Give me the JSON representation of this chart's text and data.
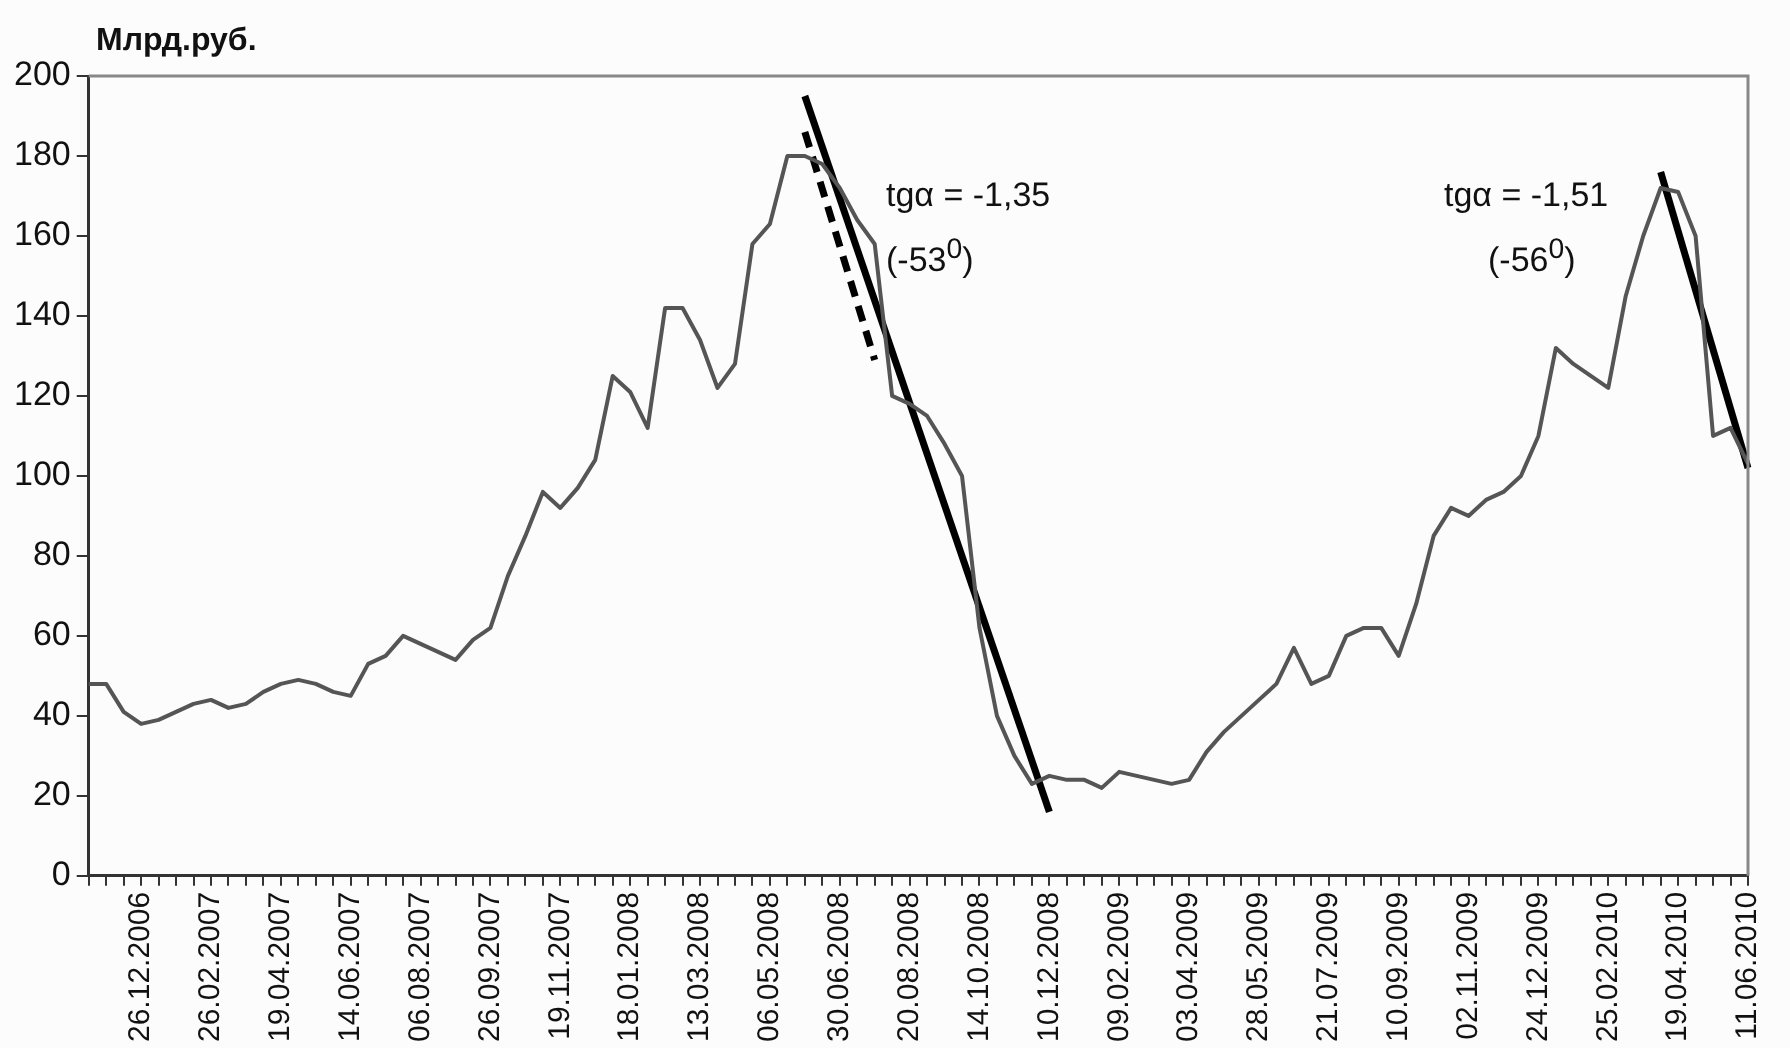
{
  "chart_data": {
    "type": "line",
    "ylabel": "Млрд.руб.",
    "annotations": [
      "tgα = -1,35",
      "(-53$^{0}$)",
      "tgα = -1,51",
      "(-56$^{0}$)"
    ],
    "categories": [
      null,
      null,
      null,
      "26.12.2006",
      null,
      null,
      null,
      "26.02.2007",
      null,
      null,
      null,
      "19.04.2007",
      null,
      null,
      null,
      "14.06.2007",
      null,
      null,
      null,
      "06.08.2007",
      null,
      null,
      null,
      "26.09.2007",
      null,
      null,
      null,
      "19.11.2007",
      null,
      null,
      null,
      "18.01.2008",
      null,
      null,
      null,
      "13.03.2008",
      null,
      null,
      null,
      "06.05.2008",
      null,
      null,
      null,
      "30.06.2008",
      null,
      null,
      null,
      "20.08.2008",
      null,
      null,
      null,
      "14.10.2008",
      null,
      null,
      null,
      "10.12.2008",
      null,
      null,
      null,
      "09.02.2009",
      null,
      null,
      null,
      "03.04.2009",
      null,
      null,
      null,
      "28.05.2009",
      null,
      null,
      null,
      "21.07.2009",
      null,
      null,
      null,
      "10.09.2009",
      null,
      null,
      null,
      "02.11.2009",
      null,
      null,
      null,
      "24.12.2009",
      null,
      null,
      null,
      "25.02.2010",
      null,
      null,
      null,
      "19.04.2010",
      null,
      null,
      null,
      "11.06.2010"
    ],
    "series": [
      {
        "color": "#555555",
        "values": [
          48,
          48,
          41,
          38,
          39,
          41,
          43,
          44,
          42,
          43,
          46,
          48,
          49,
          48,
          46,
          45,
          53,
          55,
          60,
          58,
          56,
          54,
          59,
          62,
          75,
          85,
          96,
          92,
          97,
          104,
          125,
          121,
          112,
          142,
          142,
          134,
          122,
          128,
          158,
          163,
          180,
          180,
          178,
          172,
          164,
          158,
          120,
          118,
          115,
          108,
          100,
          62,
          40,
          30,
          23,
          25,
          24,
          24,
          22,
          26,
          25,
          24,
          23,
          24,
          31,
          36,
          40,
          44,
          48,
          57,
          48,
          50,
          60,
          62,
          62,
          55,
          68,
          85,
          92,
          90,
          94,
          96,
          100,
          110,
          132,
          128,
          125,
          122,
          145,
          160,
          172,
          171,
          160,
          110,
          112,
          103
        ]
      },
      {
        "color": "#000000",
        "line_style": "solid",
        "values": [
          null,
          null,
          null,
          null,
          null,
          null,
          null,
          null,
          null,
          null,
          null,
          null,
          null,
          null,
          null,
          null,
          null,
          null,
          null,
          null,
          null,
          null,
          null,
          null,
          null,
          null,
          null,
          null,
          null,
          null,
          null,
          null,
          null,
          null,
          null,
          null,
          null,
          null,
          null,
          null,
          null,
          195,
          null,
          null,
          null,
          null,
          null,
          null,
          null,
          null,
          null,
          null,
          null,
          null,
          null,
          16,
          null,
          null,
          null,
          null,
          null,
          null,
          null,
          null,
          null,
          null,
          null,
          null,
          null,
          null,
          null,
          null,
          null,
          null,
          null,
          null,
          null,
          null,
          null,
          null,
          null,
          null,
          null,
          null,
          null,
          null,
          null,
          null,
          null,
          null,
          null,
          null,
          null,
          null,
          null,
          null
        ]
      },
      {
        "color": "#000000",
        "line_style": "dashed",
        "values": [
          null,
          null,
          null,
          null,
          null,
          null,
          null,
          null,
          null,
          null,
          null,
          null,
          null,
          null,
          null,
          null,
          null,
          null,
          null,
          null,
          null,
          null,
          null,
          null,
          null,
          null,
          null,
          null,
          null,
          null,
          null,
          null,
          null,
          null,
          null,
          null,
          null,
          null,
          null,
          null,
          null,
          186,
          null,
          null,
          null,
          129,
          null,
          null,
          null,
          null,
          null,
          null,
          null,
          null,
          null,
          null,
          null,
          null,
          null,
          null,
          null,
          null,
          null,
          null,
          null,
          null,
          null,
          null,
          null,
          null,
          null,
          null,
          null,
          null,
          null,
          null,
          null,
          null,
          null,
          null,
          null,
          null,
          null,
          null,
          null,
          null,
          null,
          null,
          null,
          null,
          null,
          null,
          null,
          null,
          null,
          null
        ]
      },
      {
        "color": "#000000",
        "line_style": "solid",
        "values": [
          null,
          null,
          null,
          null,
          null,
          null,
          null,
          null,
          null,
          null,
          null,
          null,
          null,
          null,
          null,
          null,
          null,
          null,
          null,
          null,
          null,
          null,
          null,
          null,
          null,
          null,
          null,
          null,
          null,
          null,
          null,
          null,
          null,
          null,
          null,
          null,
          null,
          null,
          null,
          null,
          null,
          null,
          null,
          null,
          null,
          null,
          null,
          null,
          null,
          null,
          null,
          null,
          null,
          null,
          null,
          null,
          null,
          null,
          null,
          null,
          null,
          null,
          null,
          null,
          null,
          null,
          null,
          null,
          null,
          null,
          null,
          null,
          null,
          null,
          null,
          null,
          null,
          null,
          null,
          null,
          null,
          null,
          null,
          null,
          null,
          null,
          null,
          null,
          null,
          null,
          176,
          null,
          null,
          null,
          null,
          102
        ]
      }
    ],
    "ylim": [
      0,
      200
    ],
    "yticks": [
      0,
      20,
      40,
      60,
      80,
      100,
      120,
      140,
      160,
      180,
      200
    ],
    "legend": false,
    "grid": false,
    "marker": "none"
  }
}
